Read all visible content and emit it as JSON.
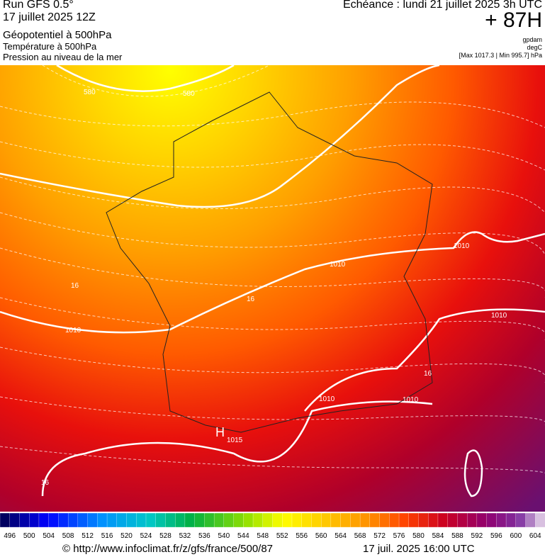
{
  "header": {
    "run": "Run GFS 0.5°",
    "date": "17 juillet 2025 12Z",
    "field1": "Géopotentiel à 500hPa",
    "field2": "Température à 500hPa",
    "field3": "Pression au niveau de la mer",
    "echeance": "Echéance : lundi 21 juillet 2025 3h UTC",
    "lead": "+ 87H",
    "unit1": "gpdam",
    "unit2": "degC",
    "range": "[Max 1017.3 | Min 995.7] hPa"
  },
  "map": {
    "labels": [
      "580",
      "580",
      "1010",
      "1010",
      "1010",
      "1010",
      "1010",
      "1010",
      "H",
      "1015",
      "16",
      "16",
      "16",
      "16"
    ]
  },
  "colorbar": {
    "labels": [
      496,
      500,
      504,
      508,
      512,
      516,
      520,
      524,
      528,
      532,
      536,
      540,
      544,
      548,
      552,
      556,
      560,
      564,
      568,
      572,
      576,
      580,
      584,
      588,
      592,
      596,
      600,
      604
    ]
  },
  "footer": {
    "url": "© http://www.infoclimat.fr/z/gfs/france/500/87",
    "time": "17 juil. 2025 16:00 UTC"
  }
}
